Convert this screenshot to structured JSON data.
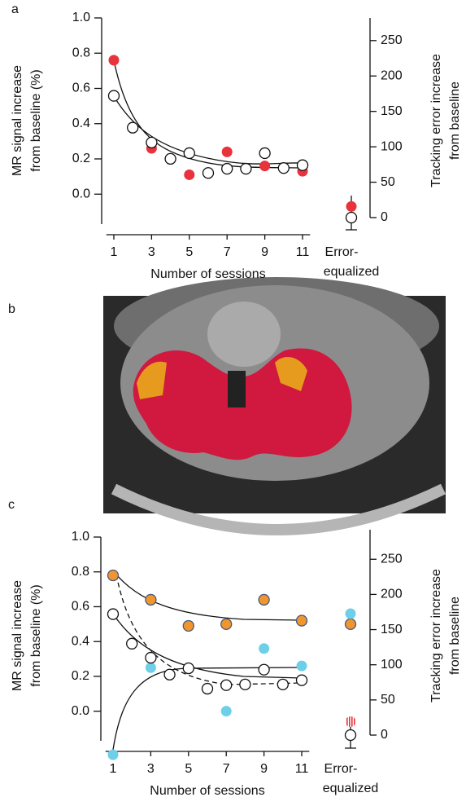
{
  "panel_labels": [
    "a",
    "b",
    "c"
  ],
  "chart_data": [
    {
      "type": "scatter",
      "xlabel": "Number of sessions",
      "ylabel": [
        "MR signal increase",
        "from baseline (%)"
      ],
      "y2label": [
        "Tracking error increase",
        "from baseline"
      ],
      "error_equalized_label": [
        "Error-",
        "equalized"
      ],
      "xlim": [
        0.6,
        11.4
      ],
      "xticks": [
        1,
        3,
        5,
        7,
        9,
        11
      ],
      "ylim": [
        -0.17,
        1.0
      ],
      "yticks": [
        {
          "value": 1,
          "label": "1.0"
        },
        0.8,
        0.6,
        0.4,
        0.2,
        {
          "value": 0,
          "label": "0.0"
        }
      ],
      "y2lim": [
        0,
        282
      ],
      "y2ticks": [
        0,
        50,
        100,
        150,
        200,
        250
      ],
      "series": [
        {
          "color": "#e8323c",
          "x": [
            1,
            3,
            5,
            7,
            9,
            11
          ],
          "values": [
            0.76,
            0.26,
            0.11,
            0.24,
            0.16,
            0.13
          ],
          "error_equalized": -0.07
        },
        {
          "color": "#ffffff",
          "edgecolor": "#111111",
          "axis": "y2",
          "x": [
            1,
            2,
            3,
            4,
            5,
            6,
            7,
            8,
            9,
            10,
            11
          ],
          "values": [
            172,
            127,
            106,
            83,
            91,
            63,
            69,
            69,
            91,
            70,
            74
          ],
          "error_equalized": 0
        }
      ]
    },
    {
      "type": "scatter",
      "xlabel": "Number of sessions",
      "ylabel": [
        "MR signal increase",
        "from baseline (%)"
      ],
      "y2label": [
        "Tracking error increase",
        "from baseline"
      ],
      "error_equalized_label": [
        "Error-",
        "equalized"
      ],
      "xlim": [
        0.6,
        11.4
      ],
      "xticks": [
        1,
        3,
        5,
        7,
        9,
        11
      ],
      "ylim": [
        -0.17,
        1.0
      ],
      "yticks": [
        {
          "value": 1,
          "label": "1.0"
        },
        0.8,
        0.6,
        0.4,
        0.2,
        {
          "value": 0,
          "label": "0.0"
        }
      ],
      "y2lim": [
        0,
        292
      ],
      "y2ticks": [
        0,
        50,
        100,
        150,
        200,
        250
      ],
      "series": [
        {
          "color": "#f0962d",
          "edgecolor": "#4a5a80",
          "x": [
            1,
            3,
            5,
            7,
            9,
            11
          ],
          "values": [
            0.78,
            0.64,
            0.49,
            0.5,
            0.64,
            0.52
          ],
          "error_equalized": 0.5
        },
        {
          "color": "#6dcfe8",
          "x": [
            1,
            3,
            5,
            7,
            9,
            11
          ],
          "values": [
            -0.25,
            0.25,
            0.25,
            0.0,
            0.36,
            0.26
          ],
          "error_equalized": 0.56
        },
        {
          "color": "#ffffff",
          "edgecolor": "#111111",
          "axis": "y2",
          "x": [
            1,
            2,
            3,
            4,
            5,
            6,
            7,
            8,
            9,
            10,
            11
          ],
          "values": [
            172,
            130,
            110,
            86,
            95,
            66,
            71,
            72,
            93,
            72,
            78
          ],
          "error_equalized": 0
        },
        {
          "color": "#e8323c",
          "hatched": true,
          "x": [],
          "values": [],
          "error_equalized": -0.06
        }
      ]
    }
  ]
}
